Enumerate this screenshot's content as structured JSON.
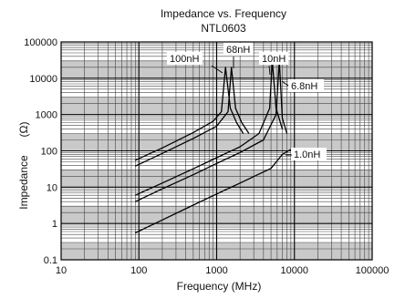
{
  "chart_data": {
    "type": "line",
    "title": "Impedance vs. Frequency",
    "subtitle": "NTL0603",
    "xlabel": "Frequency (MHz)",
    "ylabel": "Impedance",
    "ylabel_unit": "(Ω)",
    "x_scale": "log",
    "y_scale": "log",
    "xlim": [
      10,
      100000
    ],
    "ylim": [
      0.1,
      100000
    ],
    "x_ticks": [
      "10",
      "100",
      "1000",
      "10000",
      "100000"
    ],
    "y_ticks": [
      "0.1",
      "1",
      "10",
      "100",
      "1000",
      "10000",
      "100000"
    ],
    "grid": true,
    "series": [
      {
        "name": "100nH",
        "x": [
          90,
          200,
          500,
          900,
          1150,
          1300,
          1500,
          1800,
          2200
        ],
        "y": [
          55,
          120,
          320,
          650,
          1200,
          20000,
          1500,
          600,
          300
        ]
      },
      {
        "name": "68nH",
        "x": [
          90,
          200,
          500,
          1000,
          1400,
          1550,
          1750,
          2100,
          2600
        ],
        "y": [
          38,
          85,
          220,
          480,
          1200,
          20000,
          1500,
          600,
          300
        ]
      },
      {
        "name": "10nH",
        "x": [
          90,
          200,
          500,
          1000,
          2000,
          3500,
          4800,
          5200,
          5800,
          7000
        ],
        "y": [
          6,
          13,
          32,
          65,
          130,
          300,
          1500,
          30000,
          1500,
          400
        ]
      },
      {
        "name": "6.8nH",
        "x": [
          90,
          200,
          500,
          1000,
          2000,
          4000,
          5800,
          6400,
          7000,
          8000
        ],
        "y": [
          4,
          9,
          22,
          45,
          90,
          200,
          1000,
          30000,
          800,
          300
        ]
      },
      {
        "name": "1.0nH",
        "x": [
          90,
          200,
          500,
          1000,
          2000,
          5000,
          7000,
          9000
        ],
        "y": [
          0.55,
          1.25,
          3.2,
          6.5,
          13,
          33,
          80,
          110
        ]
      }
    ]
  }
}
